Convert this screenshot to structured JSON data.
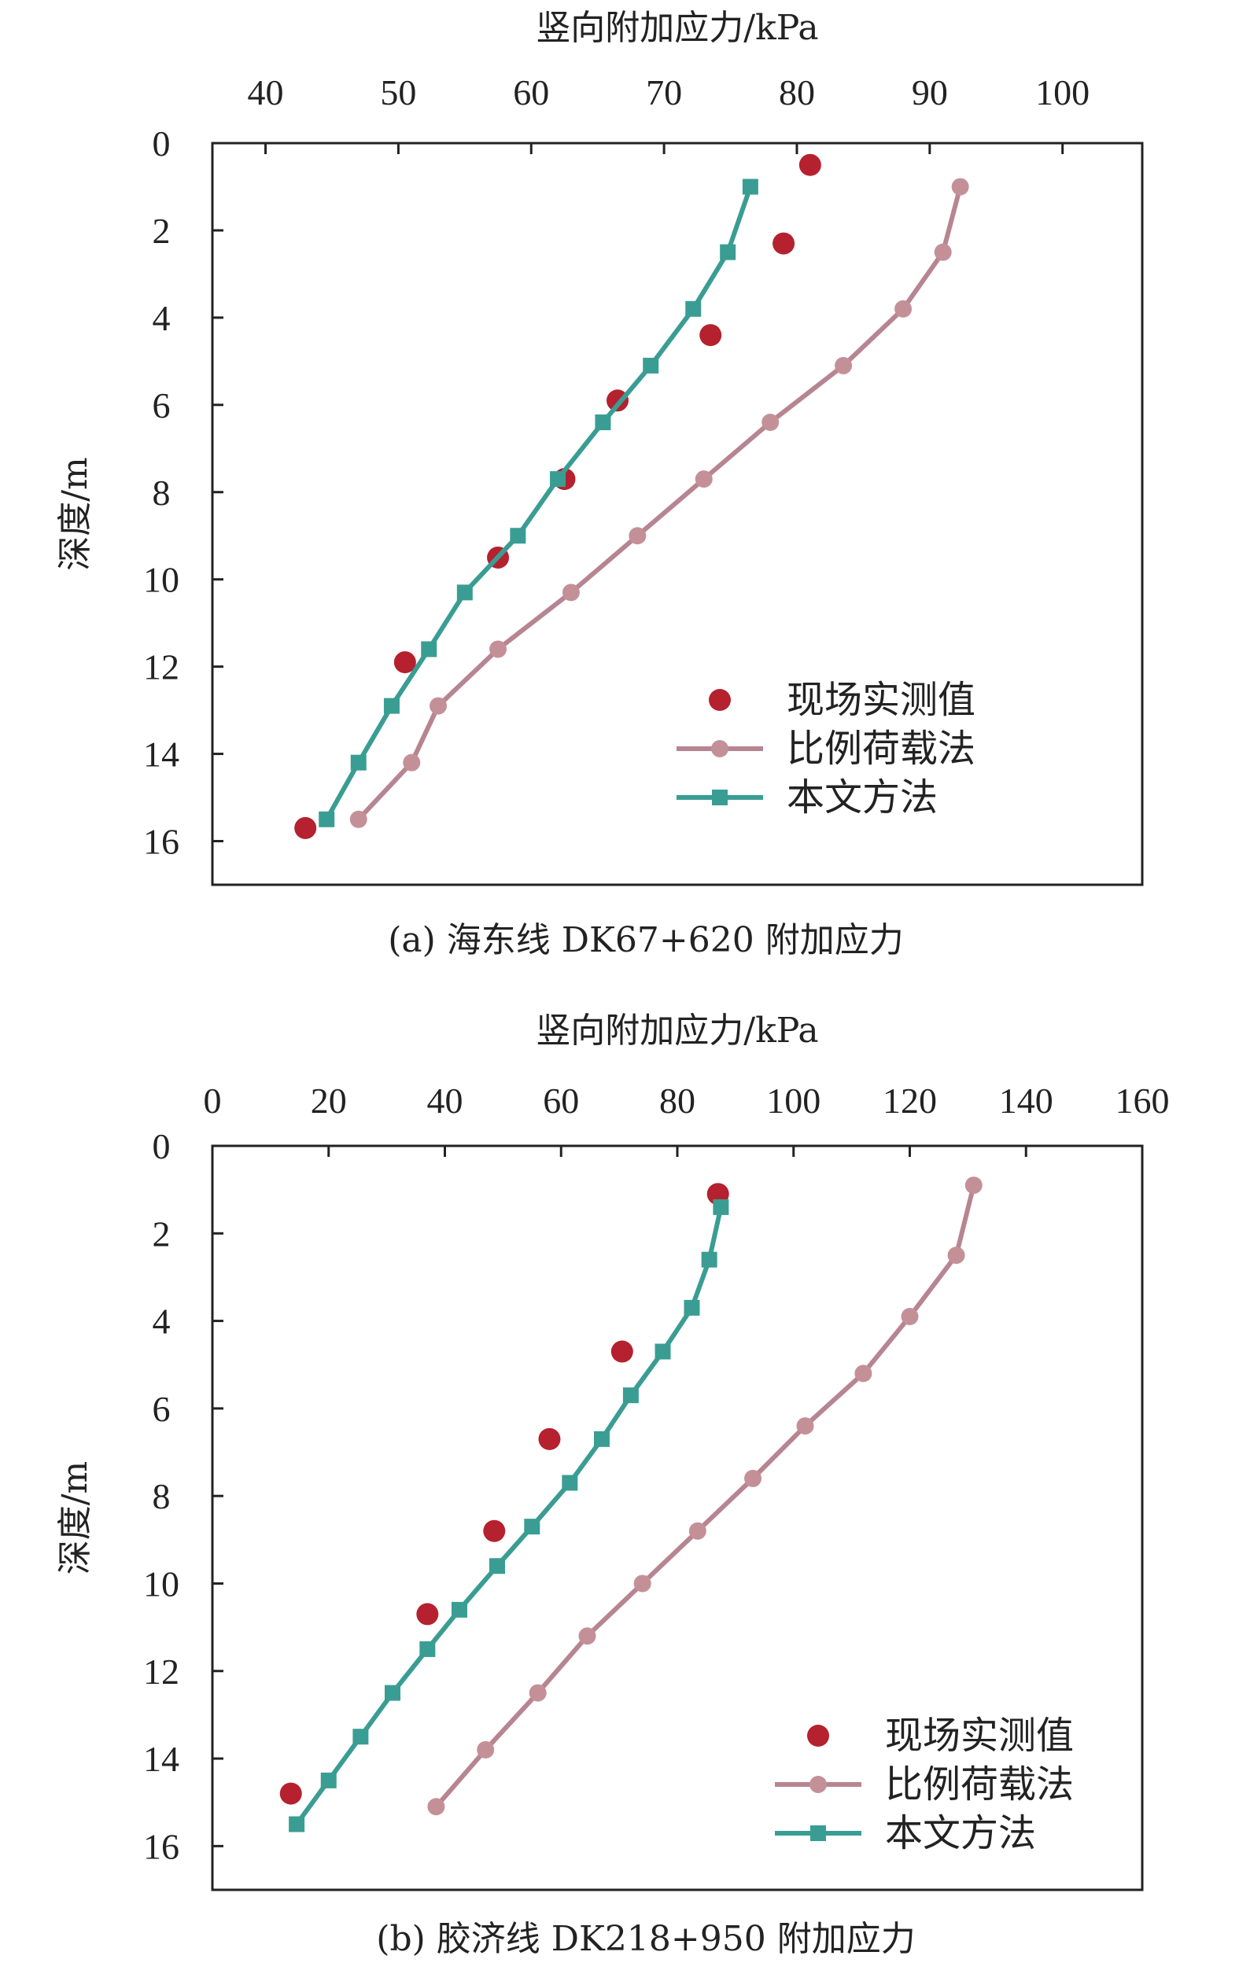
{
  "colors": {
    "measured": "#b5212e",
    "proportional": "#c49098",
    "proportional_line": "#b78591",
    "method": "#3a9d93",
    "axis": "#222222"
  },
  "chart_data": [
    {
      "type": "scatter-line",
      "caption": "(a) 海东线 DK67+620 附加应力",
      "xlabel": "竖向附加应力/kPa",
      "ylabel": "深度/m",
      "xlim": [
        36,
        106
      ],
      "ylim": [
        0,
        17
      ],
      "xticks": [
        40,
        50,
        60,
        70,
        80,
        90,
        100
      ],
      "yticks": [
        0,
        2,
        4,
        6,
        8,
        10,
        12,
        14,
        16
      ],
      "x_axis_position": "top",
      "y_inverted": true,
      "grid": false,
      "legend_position": "lower-right",
      "series": [
        {
          "name": "现场实测值",
          "marker": "circle",
          "line": false,
          "color": "#b5212e",
          "points": [
            [
              81.0,
              0.5
            ],
            [
              79.0,
              2.3
            ],
            [
              73.5,
              4.4
            ],
            [
              66.5,
              5.9
            ],
            [
              62.5,
              7.7
            ],
            [
              57.5,
              9.5
            ],
            [
              50.5,
              11.9
            ],
            [
              43.0,
              15.7
            ]
          ]
        },
        {
          "name": "比例荷载法",
          "marker": "circle",
          "line": true,
          "color": "#c49098",
          "points": [
            [
              92.3,
              1.0
            ],
            [
              91.0,
              2.5
            ],
            [
              88.0,
              3.8
            ],
            [
              83.5,
              5.1
            ],
            [
              78.0,
              6.4
            ],
            [
              73.0,
              7.7
            ],
            [
              68.0,
              9.0
            ],
            [
              63.0,
              10.3
            ],
            [
              57.5,
              11.6
            ],
            [
              53.0,
              12.9
            ],
            [
              51.0,
              14.2
            ],
            [
              47.0,
              15.5
            ]
          ]
        },
        {
          "name": "本文方法",
          "marker": "square",
          "line": true,
          "color": "#3a9d93",
          "points": [
            [
              76.5,
              1.0
            ],
            [
              74.8,
              2.5
            ],
            [
              72.2,
              3.8
            ],
            [
              69.0,
              5.1
            ],
            [
              65.4,
              6.4
            ],
            [
              62.0,
              7.7
            ],
            [
              59.0,
              9.0
            ],
            [
              55.0,
              10.3
            ],
            [
              52.3,
              11.6
            ],
            [
              49.5,
              12.9
            ],
            [
              47.0,
              14.2
            ],
            [
              44.6,
              15.5
            ]
          ]
        }
      ]
    },
    {
      "type": "scatter-line",
      "caption": "(b) 胶济线 DK218+950 附加应力",
      "xlabel": "竖向附加应力/kPa",
      "ylabel": "深度/m",
      "xlim": [
        0,
        160
      ],
      "ylim": [
        0,
        17
      ],
      "xticks": [
        0,
        20,
        40,
        60,
        80,
        100,
        120,
        140,
        160
      ],
      "yticks": [
        0,
        2,
        4,
        6,
        8,
        10,
        12,
        14,
        16
      ],
      "x_axis_position": "top",
      "y_inverted": true,
      "grid": false,
      "legend_position": "lower-right",
      "series": [
        {
          "name": "现场实测值",
          "marker": "circle",
          "line": false,
          "color": "#b5212e",
          "points": [
            [
              87.0,
              1.1
            ],
            [
              70.5,
              4.7
            ],
            [
              58.0,
              6.7
            ],
            [
              48.5,
              8.8
            ],
            [
              37.0,
              10.7
            ],
            [
              13.5,
              14.8
            ]
          ]
        },
        {
          "name": "比例荷载法",
          "marker": "circle",
          "line": true,
          "color": "#c49098",
          "points": [
            [
              131.0,
              0.9
            ],
            [
              128.0,
              2.5
            ],
            [
              120.0,
              3.9
            ],
            [
              112.0,
              5.2
            ],
            [
              102.0,
              6.4
            ],
            [
              93.0,
              7.6
            ],
            [
              83.5,
              8.8
            ],
            [
              74.0,
              10.0
            ],
            [
              64.5,
              11.2
            ],
            [
              56.0,
              12.5
            ],
            [
              47.0,
              13.8
            ],
            [
              38.5,
              15.1
            ]
          ]
        },
        {
          "name": "本文方法",
          "marker": "square",
          "line": true,
          "color": "#3a9d93",
          "points": [
            [
              87.5,
              1.4
            ],
            [
              85.5,
              2.6
            ],
            [
              82.5,
              3.7
            ],
            [
              77.5,
              4.7
            ],
            [
              72.0,
              5.7
            ],
            [
              67.0,
              6.7
            ],
            [
              61.5,
              7.7
            ],
            [
              55.0,
              8.7
            ],
            [
              49.0,
              9.6
            ],
            [
              42.5,
              10.6
            ],
            [
              37.0,
              11.5
            ],
            [
              31.0,
              12.5
            ],
            [
              25.5,
              13.5
            ],
            [
              20.0,
              14.5
            ],
            [
              14.5,
              15.5
            ]
          ]
        }
      ]
    }
  ]
}
